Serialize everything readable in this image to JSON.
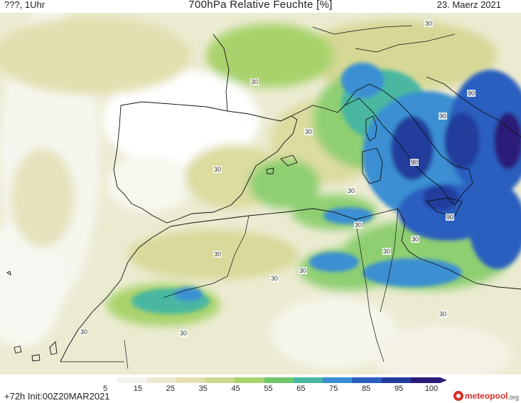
{
  "header": {
    "left": "???, 1Uhr",
    "title": "700hPa Relative Feuchte [%]",
    "date": "23. Maerz 2021"
  },
  "footer": {
    "init": "+72h Init:00Z20MAR2021",
    "logo_text": "meteopool",
    "logo_tld": ".org"
  },
  "colorbar": {
    "ticks": [
      "5",
      "15",
      "25",
      "35",
      "45",
      "55",
      "65",
      "75",
      "85",
      "95",
      "100"
    ],
    "colors": [
      "#ffffff",
      "#f3f3ec",
      "#ecebd2",
      "#e2e0b0",
      "#cdd98c",
      "#a8d36c",
      "#6fc76a",
      "#49b7a0",
      "#3a8fd2",
      "#2a5fc0",
      "#223c9c",
      "#2a1a78"
    ]
  },
  "map": {
    "contour_labels": [
      "30",
      "30",
      "30",
      "30",
      "30",
      "30",
      "30",
      "30",
      "30",
      "30",
      "30",
      "30",
      "30",
      "30",
      "90",
      "90",
      "90",
      "90",
      "30"
    ]
  },
  "colors": {
    "land_border": "#111111",
    "moist_low": "#dfe3b5",
    "moist_mid": "#8fcf72",
    "moist_high": "#3a8fd2",
    "moist_max": "#25358f"
  }
}
